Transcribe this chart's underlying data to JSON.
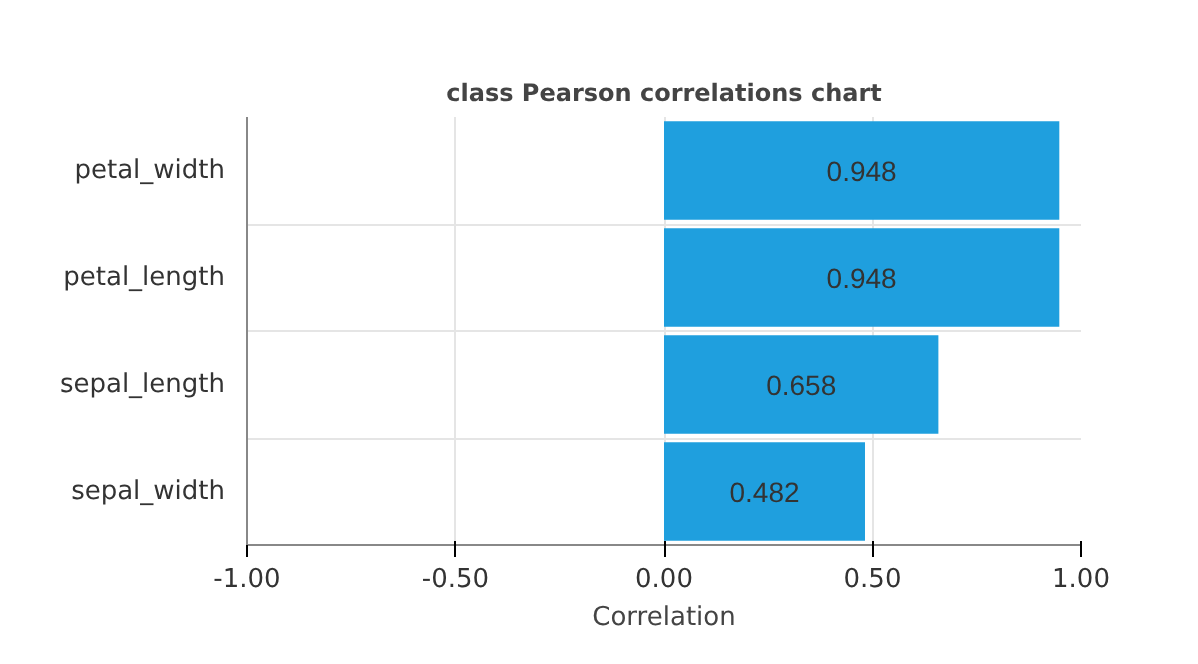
{
  "chart_data": {
    "type": "bar",
    "orientation": "horizontal",
    "title": "class Pearson correlations chart",
    "xlabel": "Correlation",
    "categories": [
      "petal_width",
      "petal_length",
      "sepal_length",
      "sepal_width"
    ],
    "values": [
      0.948,
      0.948,
      0.658,
      0.482
    ],
    "color": "#1f9fde",
    "xlim": [
      -1,
      1
    ],
    "xticks": [
      {
        "value": -1,
        "label": "-1.00"
      },
      {
        "value": -0.5,
        "label": "-0.50"
      },
      {
        "value": 0,
        "label": "0.00"
      },
      {
        "value": 0.5,
        "label": "0.50"
      },
      {
        "value": 1,
        "label": "1.00"
      }
    ],
    "data_labels": true,
    "grid": true
  }
}
